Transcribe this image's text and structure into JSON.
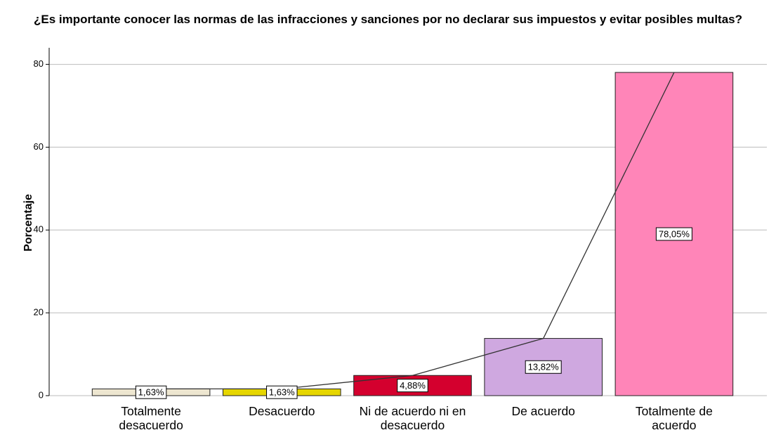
{
  "chart_data": {
    "type": "bar",
    "title": "¿Es importante conocer las normas de las infracciones y sanciones por no declarar sus impuestos y evitar posibles multas?",
    "ylabel": "Porcentaje",
    "categories": [
      "Totalmente desacuerdo",
      "Desacuerdo",
      "Ni de acuerdo ni en desacuerdo",
      "De acuerdo",
      "Totalmente de acuerdo"
    ],
    "values": [
      1.63,
      1.63,
      4.88,
      13.82,
      78.05
    ],
    "value_labels": [
      "1,63%",
      "1,63%",
      "4,88%",
      "13,82%",
      "78,05%"
    ],
    "colors": [
      "#ede6d0",
      "#e6d600",
      "#d4002e",
      "#cfa8e0",
      "#ff85b8"
    ],
    "line_color": "#333333",
    "ylim": [
      0,
      84
    ],
    "yticks": [
      0,
      20,
      40,
      60,
      80
    ],
    "grid": true
  }
}
